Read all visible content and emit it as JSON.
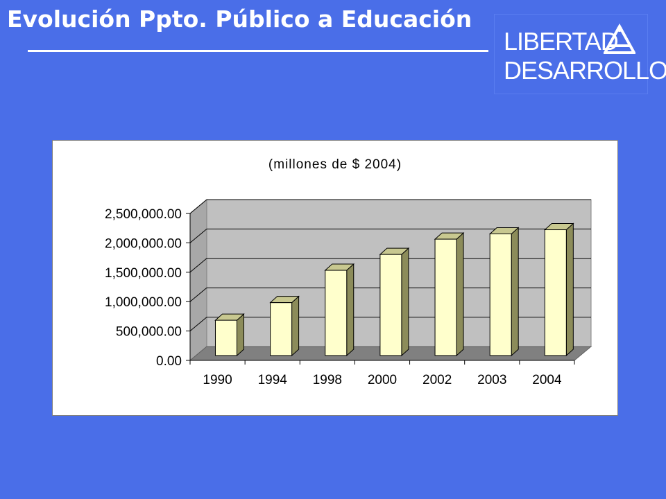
{
  "slide": {
    "title": "Evolución Ppto. Público a Educación"
  },
  "logo": {
    "line1": "LIBERTAD",
    "line2": "DESARROLLO",
    "icon": "triangle-person-mark-icon"
  },
  "colors": {
    "background": "#4a6ee8",
    "bar_face": "#ffffcc",
    "bar_side": "#8c8c5a",
    "plot_wall": "#c0c0c0",
    "plot_floor": "#808080"
  },
  "chart_data": {
    "type": "bar",
    "title": "(millones de $ 2004)",
    "categories": [
      "1990",
      "1994",
      "1998",
      "2000",
      "2002",
      "2003",
      "2004"
    ],
    "series": [
      {
        "values": [
          600000,
          900000,
          1450000,
          1720000,
          1980000,
          2070000,
          2140000
        ]
      }
    ],
    "ylim": [
      0,
      2500000
    ],
    "yticks": [
      0,
      500000,
      1000000,
      1500000,
      2000000,
      2500000
    ],
    "ytick_labels": [
      "0.00",
      "500,000.00",
      "1,000,000.00",
      "1,500,000.00",
      "2,000,000.00",
      "2,500,000.00"
    ],
    "grid": true,
    "legend": "none",
    "style": "3d-column"
  }
}
